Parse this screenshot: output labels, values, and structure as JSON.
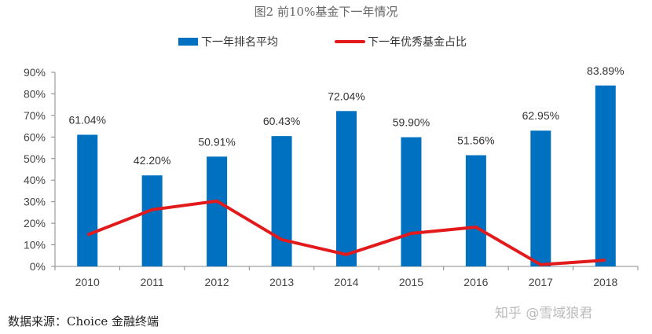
{
  "chart_data": {
    "type": "bar+line",
    "title": "图2  前10%基金下一年情况",
    "categories": [
      "2010",
      "2011",
      "2012",
      "2013",
      "2014",
      "2015",
      "2016",
      "2017",
      "2018"
    ],
    "series": [
      {
        "name": "下一年排名平均",
        "type": "bar",
        "color": "#0070C0",
        "values": [
          61.04,
          42.2,
          50.91,
          60.43,
          72.04,
          59.9,
          51.56,
          62.95,
          83.89
        ],
        "labels": [
          "61.04%",
          "42.20%",
          "50.91%",
          "60.43%",
          "72.04%",
          "59.90%",
          "51.56%",
          "62.95%",
          "83.89%"
        ]
      },
      {
        "name": "下一年优秀基金占比",
        "type": "line",
        "color": "#E31A1C",
        "values": [
          14.6,
          26.3,
          30.3,
          12.4,
          5.5,
          15.3,
          18.2,
          0.8,
          2.9
        ]
      }
    ],
    "yticks": [
      "0%",
      "10%",
      "20%",
      "30%",
      "40%",
      "50%",
      "60%",
      "70%",
      "80%",
      "90%"
    ],
    "ylim": [
      0,
      90
    ],
    "grid": false,
    "legend": "top"
  },
  "source": "数据来源：Choice 金融终端",
  "watermark": "知乎 @雪域狼君"
}
